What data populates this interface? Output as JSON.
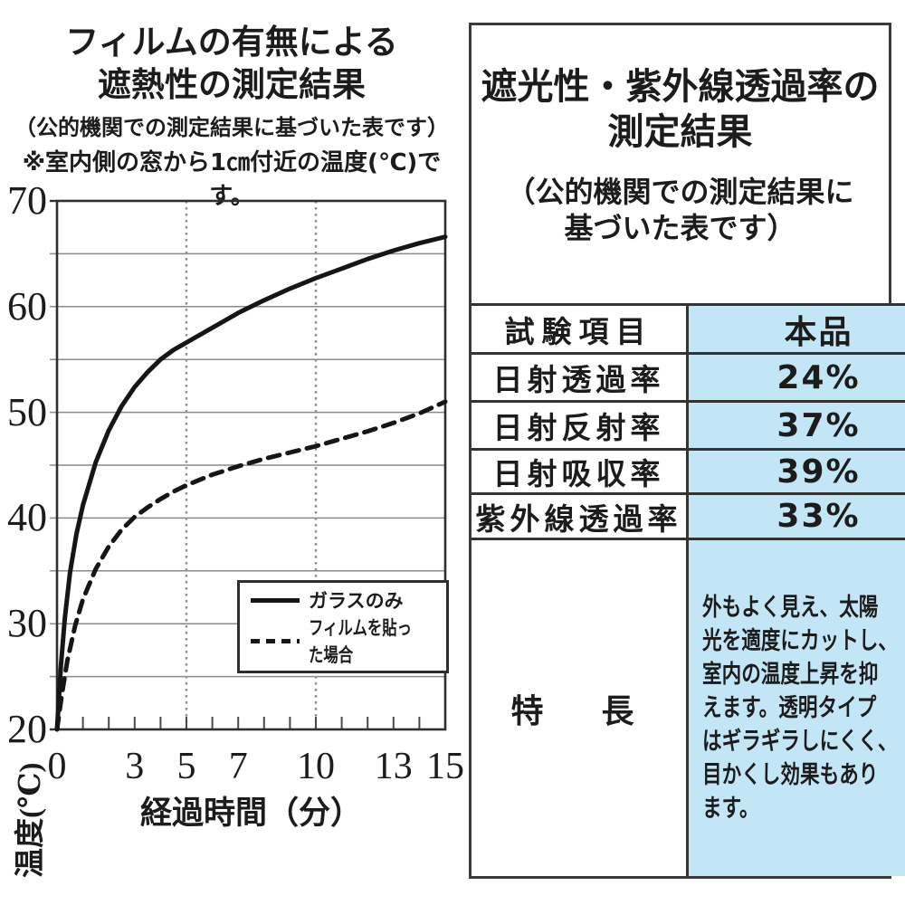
{
  "colors": {
    "highlight_blue": "#c3e6f7",
    "line_black": "#161616",
    "grid_gray": "#8a8a8a",
    "frame_dark": "#2e2e2e",
    "text": "#1c1c1c"
  },
  "left_chart": {
    "title": "フィルムの有無による\n遮熱性の測定結果",
    "subtitle": "（公的機関での測定結果に基づいた表です）",
    "note": "※室内側の窓から1㎝付近の温度(℃)です。",
    "xlabel": "経過時間（分）",
    "ylabel": "温度(℃)"
  },
  "chart_data": {
    "type": "line",
    "title": "フィルムの有無による遮熱性の測定結果",
    "xlabel": "経過時間（分）",
    "ylabel": "温度(℃)",
    "xlim": [
      0,
      15
    ],
    "ylim": [
      20,
      70
    ],
    "x_ticks_labeled": [
      0,
      3,
      5,
      7,
      10,
      13,
      15
    ],
    "x_minor_tick_step": 1,
    "y_ticks": [
      20,
      30,
      40,
      50,
      60,
      70
    ],
    "y_gridline_step": 5,
    "dotted_vertical_gridlines_x": [
      5,
      10
    ],
    "grid": true,
    "legend_position": "lower right",
    "series": [
      {
        "name": "ガラスのみ",
        "style": "solid",
        "points": [
          [
            0,
            20
          ],
          [
            0.15,
            26
          ],
          [
            0.3,
            30.5
          ],
          [
            0.5,
            34.8
          ],
          [
            0.75,
            38.5
          ],
          [
            1,
            41.2
          ],
          [
            1.5,
            45.3
          ],
          [
            2,
            48.3
          ],
          [
            2.5,
            50.6
          ],
          [
            3,
            52.4
          ],
          [
            3.5,
            53.8
          ],
          [
            4,
            55
          ],
          [
            4.5,
            55.9
          ],
          [
            5,
            56.6
          ],
          [
            6,
            58
          ],
          [
            7,
            59.4
          ],
          [
            8,
            60.6
          ],
          [
            9,
            61.7
          ],
          [
            10,
            62.7
          ],
          [
            11,
            63.6
          ],
          [
            12,
            64.5
          ],
          [
            13,
            65.3
          ],
          [
            14,
            66
          ],
          [
            15,
            66.6
          ]
        ]
      },
      {
        "name": "フィルムを貼った場合",
        "style": "dashed",
        "points": [
          [
            0,
            20
          ],
          [
            0.2,
            23.5
          ],
          [
            0.4,
            26.5
          ],
          [
            0.7,
            29.8
          ],
          [
            1,
            32.3
          ],
          [
            1.5,
            35.2
          ],
          [
            2,
            37.3
          ],
          [
            2.5,
            38.9
          ],
          [
            3,
            40.1
          ],
          [
            3.5,
            41
          ],
          [
            4,
            41.8
          ],
          [
            4.5,
            42.5
          ],
          [
            5,
            43.1
          ],
          [
            6,
            44.1
          ],
          [
            7,
            44.9
          ],
          [
            8,
            45.6
          ],
          [
            9,
            46.2
          ],
          [
            10,
            46.8
          ],
          [
            11,
            47.5
          ],
          [
            12,
            48.2
          ],
          [
            13,
            49
          ],
          [
            14,
            49.9
          ],
          [
            15,
            51
          ]
        ]
      }
    ]
  },
  "right_panel": {
    "title": "遮光性・紫外線透過率の\n測定結果",
    "subtitle": "（公的機関での測定結果に\n基づいた表です）",
    "highlight_color": "#c3e6f7",
    "table": {
      "header": {
        "label": "試験項目",
        "value": "本品"
      },
      "rows": [
        {
          "label": "日射透過率",
          "value": "24%"
        },
        {
          "label": "日射反射率",
          "value": "37%"
        },
        {
          "label": "日射吸収率",
          "value": "39%"
        },
        {
          "label": "紫外線透過率",
          "value": "33%"
        }
      ],
      "feature": {
        "label": "特　長",
        "value": "外もよく見え、太陽\n光を適度にカットし、\n室内の温度上昇を抑\nえます。透明タイプ\nはギラギラしにくく、\n目かくし効果もあり\nます。"
      }
    }
  }
}
